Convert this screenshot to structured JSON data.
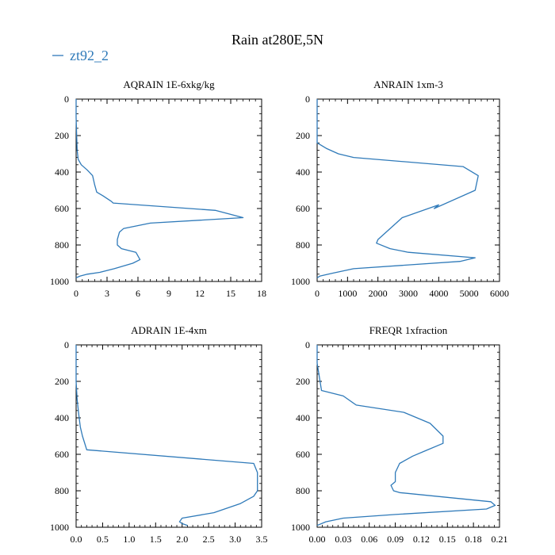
{
  "figure": {
    "title": "Rain at280E,5N",
    "legend_label": "zt92_2",
    "series_color": "#2f7ab9"
  },
  "chart_data": [
    {
      "type": "line",
      "title": "AQRAIN  1E-6xkg/kg",
      "xlim": [
        0,
        18
      ],
      "ylim": [
        1000,
        0
      ],
      "xticks": [
        0,
        3,
        6,
        9,
        12,
        15,
        18
      ],
      "xtick_labels": [
        "0",
        "3",
        "6",
        "9",
        "12",
        "15",
        "18"
      ],
      "yticks": [
        0,
        200,
        400,
        600,
        800,
        1000
      ],
      "ytick_labels": [
        "0",
        "200",
        "400",
        "600",
        "800",
        "1000"
      ],
      "series": [
        {
          "name": "zt92_2",
          "x": [
            0.0,
            0.0,
            0.05,
            0.1,
            0.2,
            0.5,
            1.1,
            1.6,
            1.8,
            2.0,
            2.6,
            3.4,
            3.6,
            13.5,
            16.2,
            7.2,
            4.6,
            4.2,
            4.0,
            4.0,
            4.4,
            5.8,
            6.2,
            5.5,
            3.7,
            2.3,
            1.1,
            0.4,
            0.0
          ],
          "y": [
            0,
            100,
            200,
            280,
            330,
            360,
            390,
            420,
            470,
            510,
            530,
            560,
            570,
            610,
            650,
            680,
            710,
            730,
            770,
            800,
            820,
            840,
            880,
            900,
            930,
            950,
            960,
            970,
            980
          ]
        }
      ]
    },
    {
      "type": "line",
      "title": "ANRAIN  1xm-3",
      "xlim": [
        0,
        6000
      ],
      "ylim": [
        1000,
        0
      ],
      "xticks": [
        0,
        1000,
        2000,
        3000,
        4000,
        5000,
        6000
      ],
      "xtick_labels": [
        "0",
        "1000",
        "2000",
        "3000",
        "4000",
        "5000",
        "6000"
      ],
      "yticks": [
        0,
        200,
        400,
        600,
        800,
        1000
      ],
      "ytick_labels": [
        "0",
        "200",
        "400",
        "600",
        "800",
        "1000"
      ],
      "series": [
        {
          "name": "zt92_2",
          "x": [
            0,
            0,
            300,
            700,
            1200,
            4800,
            5300,
            5200,
            3850,
            4000,
            2800,
            2000,
            1950,
            2400,
            3000,
            5200,
            4700,
            1200,
            500,
            100,
            0
          ],
          "y": [
            0,
            240,
            270,
            300,
            320,
            370,
            420,
            500,
            600,
            580,
            650,
            770,
            790,
            820,
            840,
            870,
            890,
            930,
            955,
            970,
            980
          ]
        }
      ]
    },
    {
      "type": "line",
      "title": "ADRAIN  1E-4xm",
      "xlim": [
        0,
        3.5
      ],
      "ylim": [
        1000,
        0
      ],
      "xticks": [
        0.0,
        0.5,
        1.0,
        1.5,
        2.0,
        2.5,
        3.0,
        3.5
      ],
      "xtick_labels": [
        "0.0",
        "0.5",
        "1.0",
        "1.5",
        "2.0",
        "2.5",
        "3.0",
        "3.5"
      ],
      "yticks": [
        0,
        200,
        400,
        600,
        800,
        1000
      ],
      "ytick_labels": [
        "0",
        "200",
        "400",
        "600",
        "800",
        "1000"
      ],
      "series": [
        {
          "name": "zt92_2",
          "x": [
            0.0,
            0.0,
            0.02,
            0.05,
            0.08,
            0.12,
            0.2,
            3.35,
            3.42,
            3.42,
            3.35,
            3.1,
            2.8,
            2.6,
            2.4,
            2.0,
            1.95,
            2.0,
            2.1
          ],
          "y": [
            0,
            200,
            300,
            380,
            450,
            500,
            575,
            650,
            700,
            800,
            830,
            870,
            900,
            920,
            930,
            950,
            970,
            980,
            990
          ]
        }
      ]
    },
    {
      "type": "line",
      "title": "FREQR  1xfraction",
      "xlim": [
        0,
        0.21
      ],
      "ylim": [
        1000,
        0
      ],
      "xticks": [
        0.0,
        0.03,
        0.06,
        0.09,
        0.12,
        0.15,
        0.18,
        0.21
      ],
      "xtick_labels": [
        "0.00",
        "0.03",
        "0.06",
        "0.09",
        "0.12",
        "0.15",
        "0.18",
        "0.21"
      ],
      "yticks": [
        0,
        200,
        400,
        600,
        800,
        1000
      ],
      "ytick_labels": [
        "0",
        "200",
        "400",
        "600",
        "800",
        "1000"
      ],
      "series": [
        {
          "name": "zt92_2",
          "x": [
            0.0,
            0.0,
            0.005,
            0.03,
            0.045,
            0.1,
            0.13,
            0.145,
            0.145,
            0.125,
            0.11,
            0.095,
            0.09,
            0.09,
            0.085,
            0.088,
            0.095,
            0.2,
            0.205,
            0.195,
            0.09,
            0.03,
            0.01,
            0.0
          ],
          "y": [
            0,
            100,
            250,
            280,
            330,
            370,
            430,
            500,
            540,
            580,
            610,
            650,
            700,
            750,
            770,
            800,
            810,
            860,
            880,
            900,
            930,
            950,
            970,
            990
          ]
        }
      ]
    }
  ]
}
